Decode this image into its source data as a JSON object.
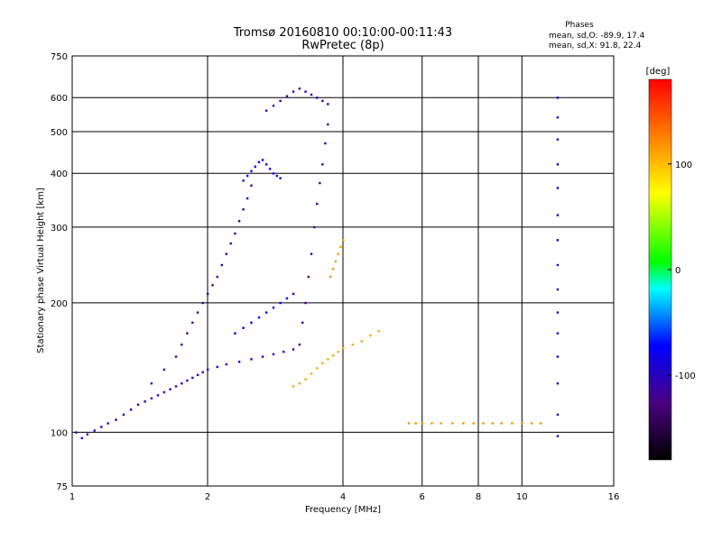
{
  "chart_data": {
    "type": "scatter",
    "title": "Tromsø 20160810 00:10:00-00:11:43",
    "subtitle": "RwPretec (8p)",
    "phases": {
      "header": "Phases",
      "line_o": "mean, sd,O: -89.9, 17.4",
      "line_x": "mean, sd,X:  91.8, 22.4"
    },
    "xlabel": "Frequency [MHz]",
    "ylabel": "Stationary phase Virtual Height [km]",
    "xscale": "log",
    "yscale": "log",
    "xlim": [
      1,
      16
    ],
    "ylim": [
      75,
      750
    ],
    "xticks": [
      1,
      2,
      4,
      6,
      8,
      10,
      16
    ],
    "xtick_labels": [
      "1",
      "2",
      "4",
      "6",
      "8",
      "10",
      "16"
    ],
    "yticks": [
      75,
      100,
      200,
      300,
      400,
      500,
      600,
      750
    ],
    "ytick_labels": [
      "75",
      "100",
      "200",
      "300",
      "400",
      "500",
      "600",
      "750"
    ],
    "x_gridlines": [
      2,
      4,
      6,
      8,
      10
    ],
    "y_gridlines": [
      100,
      200,
      300,
      400,
      500,
      600
    ],
    "grid": true,
    "colorbar": {
      "label": "[deg]",
      "range": [
        -180,
        180
      ],
      "ticks": [
        100,
        0,
        -100
      ],
      "tick_labels": [
        "100",
        "0",
        "-100"
      ]
    },
    "series": [
      {
        "phase": -95,
        "points": [
          [
            1.02,
            100
          ],
          [
            1.05,
            97
          ],
          [
            1.08,
            99
          ],
          [
            1.12,
            101
          ],
          [
            1.16,
            103
          ],
          [
            1.2,
            105
          ],
          [
            1.25,
            107
          ],
          [
            1.3,
            110
          ],
          [
            1.35,
            113
          ],
          [
            1.4,
            116
          ],
          [
            1.45,
            118
          ],
          [
            1.5,
            120
          ],
          [
            1.55,
            122
          ],
          [
            1.6,
            124
          ],
          [
            1.65,
            126
          ],
          [
            1.7,
            128
          ],
          [
            1.75,
            130
          ],
          [
            1.8,
            132
          ],
          [
            1.85,
            134
          ],
          [
            1.9,
            136
          ],
          [
            1.95,
            138
          ],
          [
            2.0,
            140
          ],
          [
            2.1,
            142
          ],
          [
            2.2,
            144
          ],
          [
            2.35,
            146
          ],
          [
            2.5,
            148
          ],
          [
            2.65,
            150
          ],
          [
            2.8,
            152
          ],
          [
            2.95,
            154
          ],
          [
            3.1,
            156
          ]
        ]
      },
      {
        "phase": -110,
        "points": [
          [
            1.5,
            130
          ],
          [
            1.6,
            140
          ],
          [
            1.7,
            150
          ],
          [
            1.75,
            160
          ],
          [
            1.8,
            170
          ],
          [
            1.85,
            180
          ],
          [
            1.9,
            190
          ],
          [
            1.95,
            200
          ],
          [
            2.0,
            210
          ],
          [
            2.05,
            220
          ],
          [
            2.1,
            230
          ],
          [
            2.15,
            245
          ],
          [
            2.2,
            260
          ],
          [
            2.25,
            275
          ],
          [
            2.3,
            290
          ],
          [
            2.35,
            310
          ],
          [
            2.4,
            330
          ],
          [
            2.45,
            350
          ],
          [
            2.5,
            375
          ]
        ]
      },
      {
        "phase": -80,
        "points": [
          [
            2.4,
            385
          ],
          [
            2.45,
            395
          ],
          [
            2.5,
            405
          ],
          [
            2.55,
            415
          ],
          [
            2.6,
            425
          ],
          [
            2.65,
            430
          ],
          [
            2.7,
            420
          ],
          [
            2.75,
            410
          ],
          [
            2.8,
            400
          ],
          [
            2.85,
            395
          ],
          [
            2.9,
            390
          ]
        ]
      },
      {
        "phase": -100,
        "points": [
          [
            2.7,
            560
          ],
          [
            2.8,
            575
          ],
          [
            2.9,
            590
          ],
          [
            3.0,
            605
          ],
          [
            3.1,
            620
          ],
          [
            3.2,
            630
          ],
          [
            3.3,
            620
          ],
          [
            3.4,
            610
          ],
          [
            3.5,
            600
          ],
          [
            3.6,
            590
          ],
          [
            3.7,
            580
          ]
        ]
      },
      {
        "phase": -115,
        "points": [
          [
            3.2,
            160
          ],
          [
            3.25,
            180
          ],
          [
            3.3,
            200
          ],
          [
            3.35,
            230
          ],
          [
            3.4,
            260
          ],
          [
            3.45,
            300
          ],
          [
            3.5,
            340
          ],
          [
            3.55,
            380
          ],
          [
            3.6,
            420
          ],
          [
            3.65,
            470
          ],
          [
            3.7,
            520
          ]
        ]
      },
      {
        "phase": -75,
        "points": [
          [
            2.3,
            170
          ],
          [
            2.4,
            175
          ],
          [
            2.5,
            180
          ],
          [
            2.6,
            185
          ],
          [
            2.7,
            190
          ],
          [
            2.8,
            195
          ],
          [
            2.9,
            200
          ],
          [
            3.0,
            205
          ],
          [
            3.1,
            210
          ]
        ]
      },
      {
        "phase": 110,
        "points": [
          [
            3.1,
            128
          ],
          [
            3.2,
            130
          ],
          [
            3.3,
            133
          ],
          [
            3.4,
            137
          ],
          [
            3.5,
            141
          ],
          [
            3.6,
            145
          ],
          [
            3.7,
            148
          ],
          [
            3.8,
            151
          ],
          [
            3.9,
            154
          ],
          [
            4.0,
            157
          ],
          [
            4.2,
            160
          ],
          [
            4.4,
            163
          ],
          [
            4.6,
            168
          ],
          [
            4.8,
            172
          ]
        ]
      },
      {
        "phase": 115,
        "points": [
          [
            3.75,
            230
          ],
          [
            3.8,
            240
          ],
          [
            3.85,
            250
          ],
          [
            3.9,
            260
          ],
          [
            3.95,
            270
          ],
          [
            4.0,
            280
          ]
        ]
      },
      {
        "phase": 120,
        "points": [
          [
            5.6,
            105
          ],
          [
            5.8,
            105
          ],
          [
            6.0,
            105
          ],
          [
            6.3,
            105
          ],
          [
            6.6,
            105
          ],
          [
            7.0,
            105
          ],
          [
            7.4,
            105
          ],
          [
            7.8,
            105
          ],
          [
            8.2,
            105
          ],
          [
            8.6,
            105
          ],
          [
            9.0,
            105
          ],
          [
            9.5,
            105
          ],
          [
            10.0,
            105
          ],
          [
            10.5,
            105
          ],
          [
            11.0,
            105
          ]
        ]
      },
      {
        "phase": -100,
        "points": [
          [
            12.0,
            98
          ],
          [
            12.0,
            110
          ],
          [
            12.0,
            130
          ],
          [
            12.0,
            150
          ],
          [
            12.0,
            170
          ],
          [
            12.0,
            190
          ],
          [
            12.0,
            215
          ],
          [
            12.0,
            245
          ],
          [
            12.0,
            280
          ],
          [
            12.0,
            320
          ],
          [
            12.0,
            370
          ],
          [
            12.0,
            420
          ],
          [
            12.0,
            480
          ],
          [
            12.0,
            540
          ],
          [
            12.0,
            600
          ]
        ]
      }
    ]
  }
}
